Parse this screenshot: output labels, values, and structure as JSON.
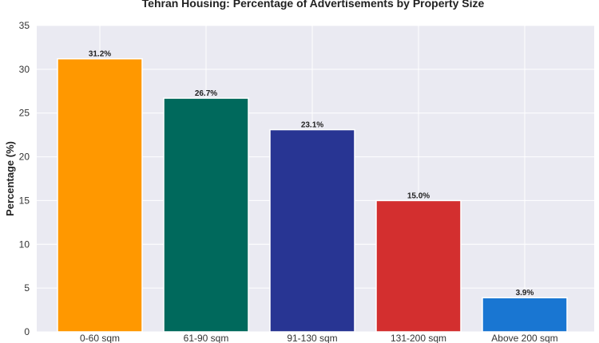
{
  "chart_data": {
    "type": "bar",
    "title": "Tehran Housing: Percentage of Advertisements by Property Size",
    "xlabel": "",
    "ylabel": "Percentage (%)",
    "ylim": [
      0,
      35
    ],
    "yticks": [
      0,
      5,
      10,
      15,
      20,
      25,
      30,
      35
    ],
    "categories": [
      "0-60 sqm",
      "61-90 sqm",
      "91-130 sqm",
      "131-200 sqm",
      "Above 200 sqm"
    ],
    "values": [
      31.2,
      26.7,
      23.1,
      15.0,
      3.9
    ],
    "value_labels": [
      "31.2%",
      "26.7%",
      "23.1%",
      "15.0%",
      "3.9%"
    ],
    "colors": [
      "#FF9800",
      "#00695C",
      "#283593",
      "#D32F2F",
      "#1976D2"
    ],
    "grid": true,
    "background": "#EAEAF2"
  }
}
